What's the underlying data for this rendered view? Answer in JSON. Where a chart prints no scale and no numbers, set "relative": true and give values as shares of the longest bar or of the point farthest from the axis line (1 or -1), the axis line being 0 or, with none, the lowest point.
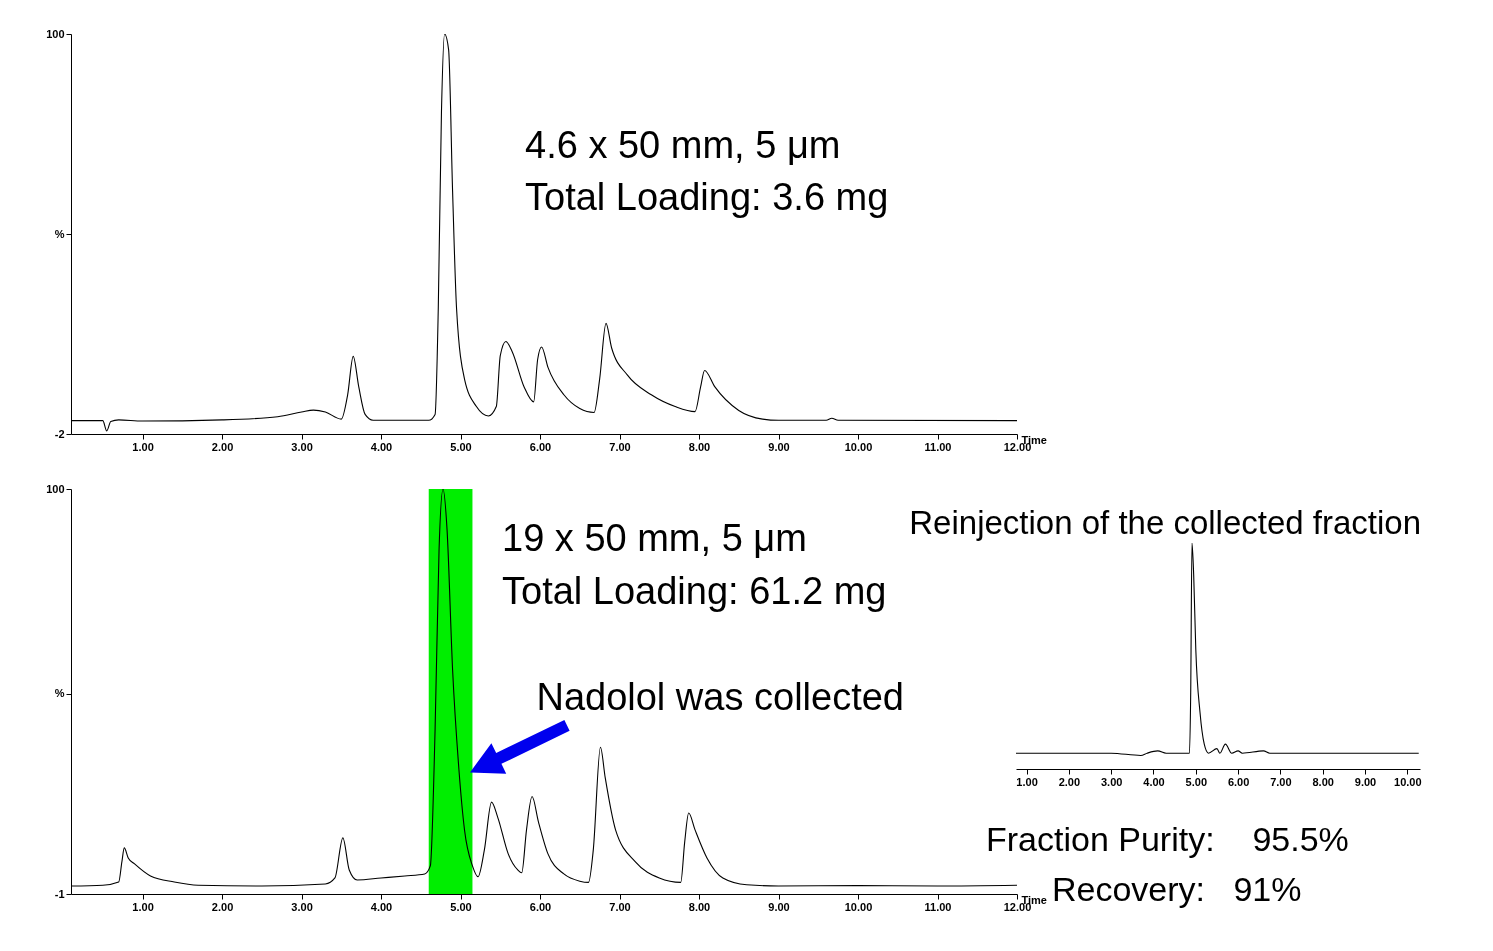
{
  "chart_data": [
    {
      "type": "line",
      "xlabel": "Time",
      "annotations": [
        "4.6 x 50 mm, 5 μm",
        "Total Loading: 3.6 mg"
      ],
      "x": [
        0.1,
        0.5,
        0.55,
        0.6,
        0.7,
        1.0,
        2.0,
        2.7,
        3.0,
        3.15,
        3.3,
        3.5,
        3.58,
        3.65,
        3.72,
        3.8,
        3.9,
        4.6,
        4.68,
        4.72,
        4.76,
        4.8,
        4.85,
        4.9,
        4.95,
        5.05,
        5.2,
        5.35,
        5.45,
        5.5,
        5.57,
        5.65,
        5.8,
        5.92,
        5.97,
        6.02,
        6.1,
        6.3,
        6.5,
        6.68,
        6.75,
        6.83,
        6.9,
        7.1,
        7.4,
        7.7,
        7.95,
        8.02,
        8.07,
        8.2,
        8.5,
        8.8,
        9.0,
        9.6,
        9.67,
        9.75,
        12.0
      ],
      "series": [
        {
          "color": "#000000",
          "values": [
            1.4,
            1.4,
            -1.2,
            1.2,
            1.6,
            1.3,
            1.6,
            2.4,
            3.6,
            4.1,
            3.6,
            1.8,
            8,
            17.8,
            10,
            3,
            1.5,
            1.5,
            3,
            30,
            80,
            100,
            96,
            60,
            30,
            12,
            5,
            2.6,
            5,
            18,
            21.6,
            19,
            10,
            6.2,
            17,
            20.2,
            15,
            8,
            4.5,
            3.5,
            12,
            26.2,
            20,
            13,
            8,
            5,
            3.7,
            10,
            14.2,
            10,
            4,
            1.8,
            1.5,
            1.5,
            2,
            1.5,
            1.4
          ]
        }
      ],
      "xlim": [
        0.1,
        12
      ],
      "ylim": [
        -2,
        100
      ],
      "xticks": [
        {
          "value": 1,
          "label": "1.00"
        },
        {
          "value": 2,
          "label": "2.00"
        },
        {
          "value": 3,
          "label": "3.00"
        },
        {
          "value": 4,
          "label": "4.00"
        },
        {
          "value": 5,
          "label": "5.00"
        },
        {
          "value": 6,
          "label": "6.00"
        },
        {
          "value": 7,
          "label": "7.00"
        },
        {
          "value": 8,
          "label": "8.00"
        },
        {
          "value": 9,
          "label": "9.00"
        },
        {
          "value": 10,
          "label": "10.00"
        },
        {
          "value": 11,
          "label": "11.00"
        },
        {
          "value": 12,
          "label": "12.00"
        }
      ],
      "yticks": [
        -2,
        {
          "value": 49,
          "label": "%"
        },
        100
      ]
    },
    {
      "type": "line",
      "xlabel": "Time",
      "annotations": [
        "19 x 50 mm, 5 μm",
        "Total Loading: 61.2 mg"
      ],
      "bands": [
        {
          "axis": "x",
          "from": 4.6,
          "to": 5.15,
          "label": "Nadolol was collected",
          "color": "#00ee00"
        }
      ],
      "x": [
        0.1,
        0.5,
        0.7,
        0.74,
        0.77,
        0.82,
        0.9,
        1.1,
        1.4,
        1.7,
        2.5,
        3.3,
        3.42,
        3.52,
        3.6,
        3.7,
        4.0,
        4.3,
        4.55,
        4.62,
        4.68,
        4.73,
        4.78,
        4.83,
        4.9,
        4.98,
        5.05,
        5.15,
        5.22,
        5.3,
        5.39,
        5.47,
        5.6,
        5.72,
        5.77,
        5.83,
        5.9,
        5.98,
        6.1,
        6.3,
        6.5,
        6.61,
        6.67,
        6.76,
        6.82,
        6.95,
        7.2,
        7.5,
        7.77,
        7.82,
        7.87,
        7.95,
        8.1,
        8.3,
        8.6,
        9.0,
        10.0,
        11.0,
        12.0
      ],
      "series": [
        {
          "color": "#000000",
          "values": [
            1.0,
            1.2,
            2,
            7,
            10.5,
            8,
            6.5,
            3.5,
            2,
            1.2,
            1,
            1.5,
            3,
            13,
            5,
            2.5,
            3,
            3.5,
            4,
            6,
            40,
            85,
            100,
            90,
            55,
            30,
            15,
            6,
            3.3,
            10,
            21.9,
            18,
            9,
            5,
            4.3,
            15,
            23.3,
            17,
            9,
            4,
            2.2,
            1.9,
            10,
            35.6,
            28,
            15,
            7,
            3,
            1.9,
            12,
            19.2,
            15,
            8,
            3,
            1.3,
            1,
            1.1,
            1,
            1.2
          ]
        }
      ],
      "xlim": [
        0.1,
        12
      ],
      "ylim": [
        -1,
        100
      ],
      "xticks": [
        {
          "value": 1,
          "label": "1.00"
        },
        {
          "value": 2,
          "label": "2.00"
        },
        {
          "value": 3,
          "label": "3.00"
        },
        {
          "value": 4,
          "label": "4.00"
        },
        {
          "value": 5,
          "label": "5.00"
        },
        {
          "value": 6,
          "label": "6.00"
        },
        {
          "value": 7,
          "label": "7.00"
        },
        {
          "value": 8,
          "label": "8.00"
        },
        {
          "value": 9,
          "label": "9.00"
        },
        {
          "value": 10,
          "label": "10.00"
        },
        {
          "value": 11,
          "label": "11.00"
        },
        {
          "value": 12,
          "label": "12.00"
        }
      ],
      "yticks": [
        -1,
        {
          "value": 49,
          "label": "%"
        },
        100
      ]
    },
    {
      "type": "line",
      "title": "Reinjection of the collected fraction",
      "annotations": [
        "Fraction Purity:    95.5%",
        "Recovery:   91%"
      ],
      "relative": true,
      "x": [
        0.75,
        3.0,
        3.7,
        3.85,
        4.1,
        4.3,
        4.85,
        4.88,
        4.91,
        4.95,
        5.0,
        5.1,
        5.2,
        5.3,
        5.5,
        5.57,
        5.7,
        5.85,
        6.0,
        6.1,
        6.6,
        6.75,
        10.27
      ],
      "series": [
        {
          "color": "#000000",
          "values": [
            0.07,
            0.07,
            0.06,
            0.07,
            0.08,
            0.07,
            0.07,
            0.34,
            1,
            0.86,
            0.53,
            0.25,
            0.11,
            0.07,
            0.09,
            0.07,
            0.11,
            0.07,
            0.08,
            0.07,
            0.08,
            0.07,
            0.07
          ]
        }
      ],
      "xlim": [
        0.75,
        10.3
      ],
      "xticks": [
        {
          "value": 1,
          "label": "1.00"
        },
        {
          "value": 2,
          "label": "2.00"
        },
        {
          "value": 3,
          "label": "3.00"
        },
        {
          "value": 4,
          "label": "4.00"
        },
        {
          "value": 5,
          "label": "5.00"
        },
        {
          "value": 6,
          "label": "6.00"
        },
        {
          "value": 7,
          "label": "7.00"
        },
        {
          "value": 8,
          "label": "8.00"
        },
        {
          "value": 9,
          "label": "9.00"
        },
        {
          "value": 10,
          "label": "10.00"
        }
      ]
    }
  ]
}
